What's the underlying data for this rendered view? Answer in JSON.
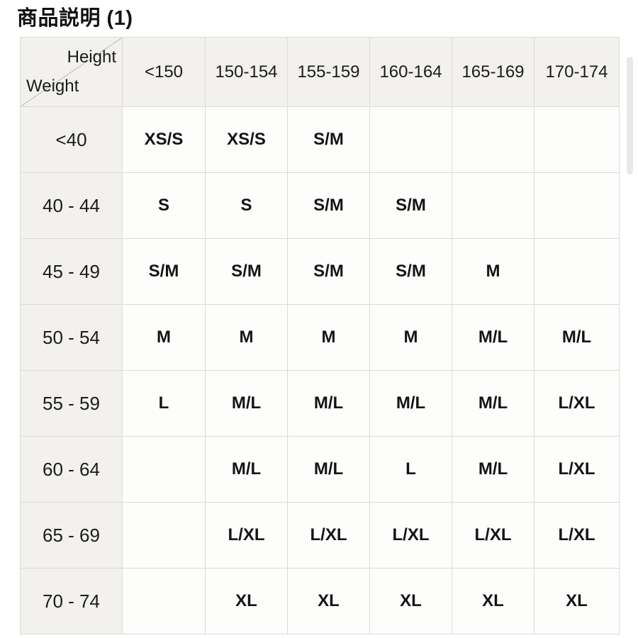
{
  "page": {
    "title": "商品説明 (1)"
  },
  "size_chart": {
    "corner": {
      "top_label": "Height",
      "bottom_label": "Weight"
    },
    "columns": [
      "<150",
      "150-154",
      "155-159",
      "160-164",
      "165-169",
      "170-174"
    ],
    "rows": [
      {
        "label": "<40",
        "values": [
          "XS/S",
          "XS/S",
          "S/M",
          "",
          "",
          ""
        ]
      },
      {
        "label": "40 - 44",
        "values": [
          "S",
          "S",
          "S/M",
          "S/M",
          "",
          ""
        ]
      },
      {
        "label": "45 - 49",
        "values": [
          "S/M",
          "S/M",
          "S/M",
          "S/M",
          "M",
          ""
        ]
      },
      {
        "label": "50 - 54",
        "values": [
          "M",
          "M",
          "M",
          "M",
          "M/L",
          "M/L"
        ]
      },
      {
        "label": "55 - 59",
        "values": [
          "L",
          "M/L",
          "M/L",
          "M/L",
          "M/L",
          "L/XL"
        ]
      },
      {
        "label": "60 - 64",
        "values": [
          "",
          "M/L",
          "M/L",
          "L",
          "M/L",
          "L/XL"
        ]
      },
      {
        "label": "65 - 69",
        "values": [
          "",
          "L/XL",
          "L/XL",
          "L/XL",
          "L/XL",
          "L/XL"
        ]
      },
      {
        "label": "70 - 74",
        "values": [
          "",
          "XL",
          "XL",
          "XL",
          "XL",
          "XL"
        ]
      }
    ]
  },
  "colors": {
    "page_bg": "#ffffff",
    "header_bg": "#f2f1ee",
    "cell_bg": "#fdfdfc",
    "border": "#dddbd7",
    "text": "#1d1d1f",
    "scrollbar": "#e9e9e9"
  }
}
